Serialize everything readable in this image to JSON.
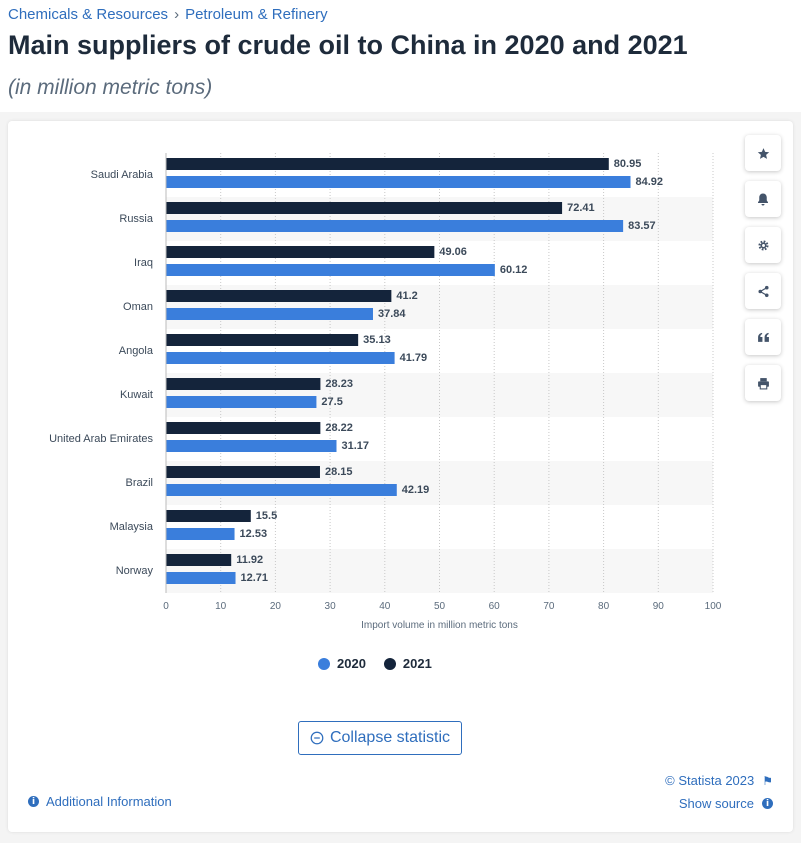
{
  "breadcrumb": [
    "Chemicals & Resources",
    "Petroleum & Refinery"
  ],
  "breadcrumb_sep": "›",
  "title": "Main suppliers of crude oil to China in 2020 and 2021",
  "subtitle": "(in million metric tons)",
  "chart_data": {
    "type": "bar",
    "orientation": "horizontal",
    "categories": [
      "Saudi Arabia",
      "Russia",
      "Iraq",
      "Oman",
      "Angola",
      "Kuwait",
      "United Arab Emirates",
      "Brazil",
      "Malaysia",
      "Norway"
    ],
    "series": [
      {
        "name": "2021",
        "color": "#14243b",
        "values": [
          80.95,
          72.41,
          49.06,
          41.2,
          35.13,
          28.23,
          28.22,
          28.15,
          15.5,
          11.92
        ]
      },
      {
        "name": "2020",
        "color": "#3a7edc",
        "values": [
          84.92,
          83.57,
          60.12,
          37.84,
          41.79,
          27.5,
          31.17,
          42.19,
          12.53,
          12.71
        ]
      }
    ],
    "value_labels": {
      "2021": [
        "80.95",
        "72.41",
        "49.06",
        "41.2",
        "35.13",
        "28.23",
        "28.22",
        "28.15",
        "15.5",
        "11.92"
      ],
      "2020": [
        "84.92",
        "83.57",
        "60.12",
        "37.84",
        "41.79",
        "27.5",
        "31.17",
        "42.19",
        "12.53",
        "12.71"
      ]
    },
    "xlabel": "Import volume in million metric tons",
    "xlim": [
      0,
      100
    ],
    "xticks": [
      0,
      10,
      20,
      30,
      40,
      50,
      60,
      70,
      80,
      90,
      100
    ],
    "grid": "vertical dotted",
    "legend": [
      {
        "name": "2020",
        "color": "#3a7edc"
      },
      {
        "name": "2021",
        "color": "#14243b"
      }
    ],
    "legend_position": "bottom"
  },
  "tools": [
    {
      "name": "favorite-button",
      "icon": "star-icon"
    },
    {
      "name": "notification-button",
      "icon": "bell-icon"
    },
    {
      "name": "settings-button",
      "icon": "gear-icon"
    },
    {
      "name": "share-button",
      "icon": "share-icon"
    },
    {
      "name": "cite-button",
      "icon": "quote-icon"
    },
    {
      "name": "print-button",
      "icon": "printer-icon"
    }
  ],
  "collapse_label": "Collapse statistic",
  "credit": "© Statista 2023",
  "additional_info": "Additional Information",
  "show_source": "Show source"
}
